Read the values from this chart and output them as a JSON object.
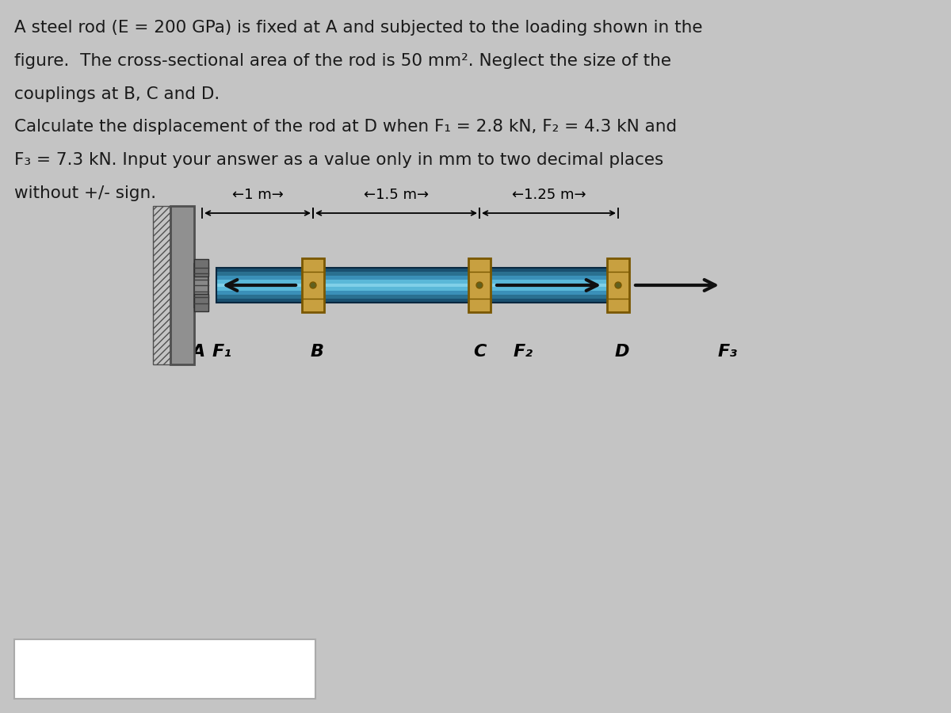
{
  "background_color": "#c4c4c4",
  "text_color": "#1a1a1a",
  "text_block1": [
    "A steel rod (E = 200 GPa) is fixed at A and subjected to the loading shown in the",
    "figure.  The cross-sectional area of the rod is 50 mm². Neglect the size of the",
    "couplings at B, C and D."
  ],
  "text_block2": [
    "Calculate the displacement of the rod at D when F₁ = 2.8 kN, F₂ = 4.3 kN and",
    "F₃ = 7.3 kN. Input your answer as a value only in mm to two decimal places",
    "without +/- sign."
  ],
  "dim_label_AB": "←1 m→",
  "dim_label_BC": "←1.5 m→",
  "dim_label_CD": "←1.25 m→",
  "label_A": "A",
  "label_B": "B",
  "label_C": "C",
  "label_D": "D",
  "label_F1": "F₁",
  "label_F2": "F₂",
  "label_F3": "F₃",
  "coupling_color": "#c8a040",
  "coupling_border": "#7a5800",
  "arrow_color": "#111111",
  "fig_width": 12.0,
  "fig_height": 9.0,
  "rod_colors": [
    "#1a5070",
    "#2a7090",
    "#3a90b8",
    "#5ab8d8",
    "#80d0e8",
    "#5ab8d8",
    "#3a90b8",
    "#2a7090",
    "#1a5070"
  ],
  "rod_border": "#0a2840",
  "wall_face": "#909090",
  "wall_border": "#505050"
}
